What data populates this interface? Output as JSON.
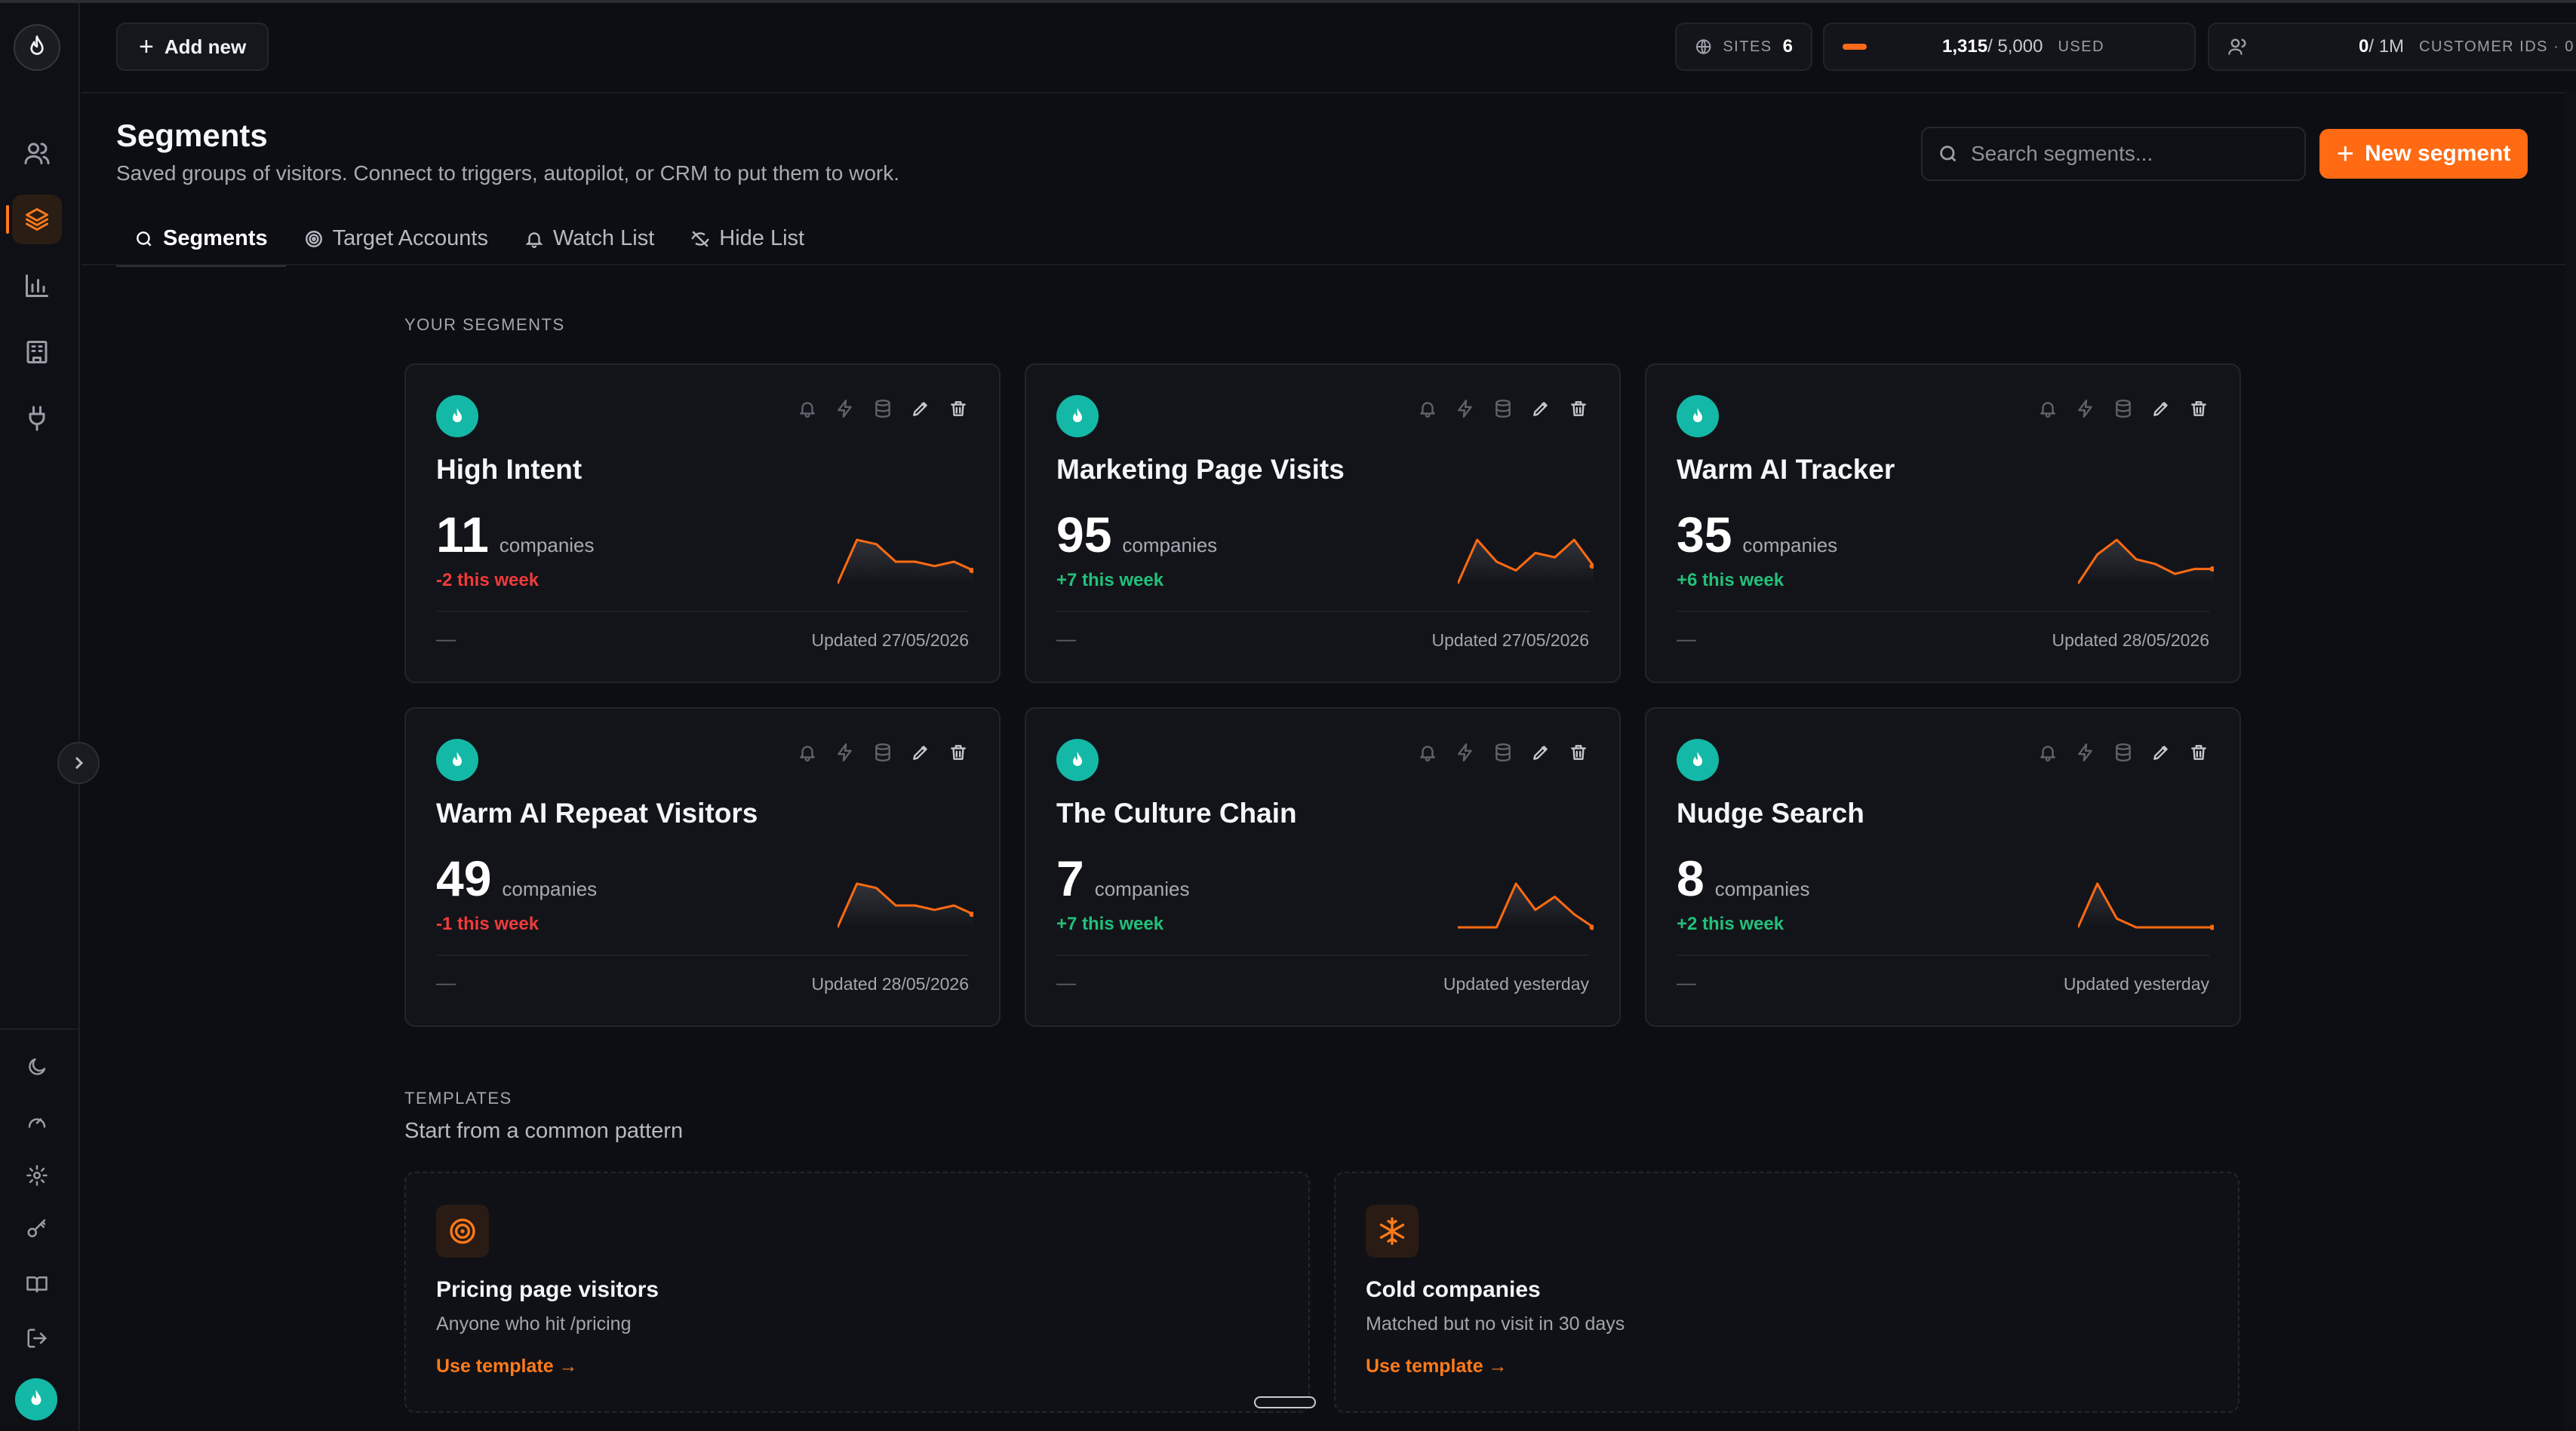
{
  "topbar": {
    "add_new": "Add new",
    "sites_label": "SITES",
    "sites_count": "6",
    "usage_used": "1,315",
    "usage_total": " / 5,000",
    "usage_label": "USED",
    "usage_fraction": 0.263,
    "customer_ids_used": "0",
    "customer_ids_total": " / 1M",
    "customer_ids_label": "CUSTOMER IDS · 0"
  },
  "header": {
    "title": "Segments",
    "subtitle": "Saved groups of visitors. Connect to triggers, autopilot, or CRM to put them to work.",
    "search_placeholder": "Search segments...",
    "new_segment": "New segment"
  },
  "tabs": [
    {
      "label": "Segments",
      "icon": "search-icon",
      "active": true
    },
    {
      "label": "Target Accounts",
      "icon": "target-icon",
      "active": false
    },
    {
      "label": "Watch List",
      "icon": "bell-icon",
      "active": false
    },
    {
      "label": "Hide List",
      "icon": "eye-off-icon",
      "active": false
    }
  ],
  "segments_caption": "YOUR SEGMENTS",
  "segments": [
    {
      "title": "High Intent",
      "count": "11",
      "unit": "companies",
      "delta": "-2 this week",
      "delta_type": "negative",
      "dash": "—",
      "updated": "Updated 27/05/2026",
      "spark": [
        0,
        10,
        9,
        5,
        5,
        4,
        5,
        3
      ]
    },
    {
      "title": "Marketing Page Visits",
      "count": "95",
      "unit": "companies",
      "delta": "+7 this week",
      "delta_type": "positive",
      "dash": "—",
      "updated": "Updated 27/05/2026",
      "spark": [
        0,
        10,
        5,
        3,
        7,
        6,
        10,
        4
      ]
    },
    {
      "title": "Warm AI Tracker",
      "count": "35",
      "unit": "companies",
      "delta": "+6 this week",
      "delta_type": "positive",
      "dash": "—",
      "updated": "Updated 28/05/2026",
      "spark": [
        0,
        6,
        9,
        5,
        4,
        2,
        3,
        3
      ]
    },
    {
      "title": "Warm AI Repeat Visitors",
      "count": "49",
      "unit": "companies",
      "delta": "-1 this week",
      "delta_type": "negative",
      "dash": "—",
      "updated": "Updated 28/05/2026",
      "spark": [
        0,
        10,
        9,
        5,
        5,
        4,
        5,
        3
      ]
    },
    {
      "title": "The Culture Chain",
      "count": "7",
      "unit": "companies",
      "delta": "+7 this week",
      "delta_type": "positive",
      "dash": "—",
      "updated": "Updated yesterday",
      "spark": [
        0,
        0,
        0,
        10,
        4,
        7,
        3,
        0
      ]
    },
    {
      "title": "Nudge Search",
      "count": "8",
      "unit": "companies",
      "delta": "+2 this week",
      "delta_type": "positive",
      "dash": "—",
      "updated": "Updated yesterday",
      "spark": [
        0,
        10,
        2,
        0,
        0,
        0,
        0,
        0
      ]
    }
  ],
  "templates": {
    "caption": "TEMPLATES",
    "subtitle": "Start from a common pattern",
    "items": [
      {
        "title": "Pricing page visitors",
        "desc": "Anyone who hit /pricing",
        "link": "Use template →",
        "icon": "target-icon"
      },
      {
        "title": "Cold companies",
        "desc": "Matched but no visit in 30 days",
        "link": "Use template →",
        "icon": "snowflake-icon"
      }
    ]
  },
  "colors": {
    "accent": "#ff6a12",
    "teal": "#14b8a6",
    "positive": "#22c07a",
    "negative": "#ef3b3b",
    "background": "#0d0e13"
  }
}
